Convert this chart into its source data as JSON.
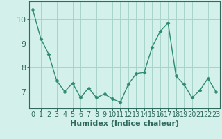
{
  "x": [
    0,
    1,
    2,
    3,
    4,
    5,
    6,
    7,
    8,
    9,
    10,
    11,
    12,
    13,
    14,
    15,
    16,
    17,
    18,
    19,
    20,
    21,
    22,
    23
  ],
  "y": [
    10.4,
    9.2,
    8.55,
    7.45,
    7.0,
    7.35,
    6.75,
    7.15,
    6.75,
    6.9,
    6.7,
    6.55,
    7.3,
    7.75,
    7.8,
    8.85,
    9.5,
    9.85,
    7.65,
    7.3,
    6.75,
    7.05,
    7.55,
    7.0
  ],
  "line_color": "#2e8b72",
  "marker": "D",
  "marker_size": 2.5,
  "bg_color": "#d4f0ea",
  "grid_color": "#a8d4cc",
  "xlabel": "Humidex (Indice chaleur)",
  "xlim": [
    -0.5,
    23.5
  ],
  "ylim": [
    6.3,
    10.75
  ],
  "yticks": [
    7,
    8,
    9,
    10
  ],
  "xticks": [
    0,
    1,
    2,
    3,
    4,
    5,
    6,
    7,
    8,
    9,
    10,
    11,
    12,
    13,
    14,
    15,
    16,
    17,
    18,
    19,
    20,
    21,
    22,
    23
  ],
  "tick_color": "#2e6b5e",
  "label_color": "#2e6b5e",
  "xlabel_fontsize": 8,
  "tick_fontsize": 7
}
